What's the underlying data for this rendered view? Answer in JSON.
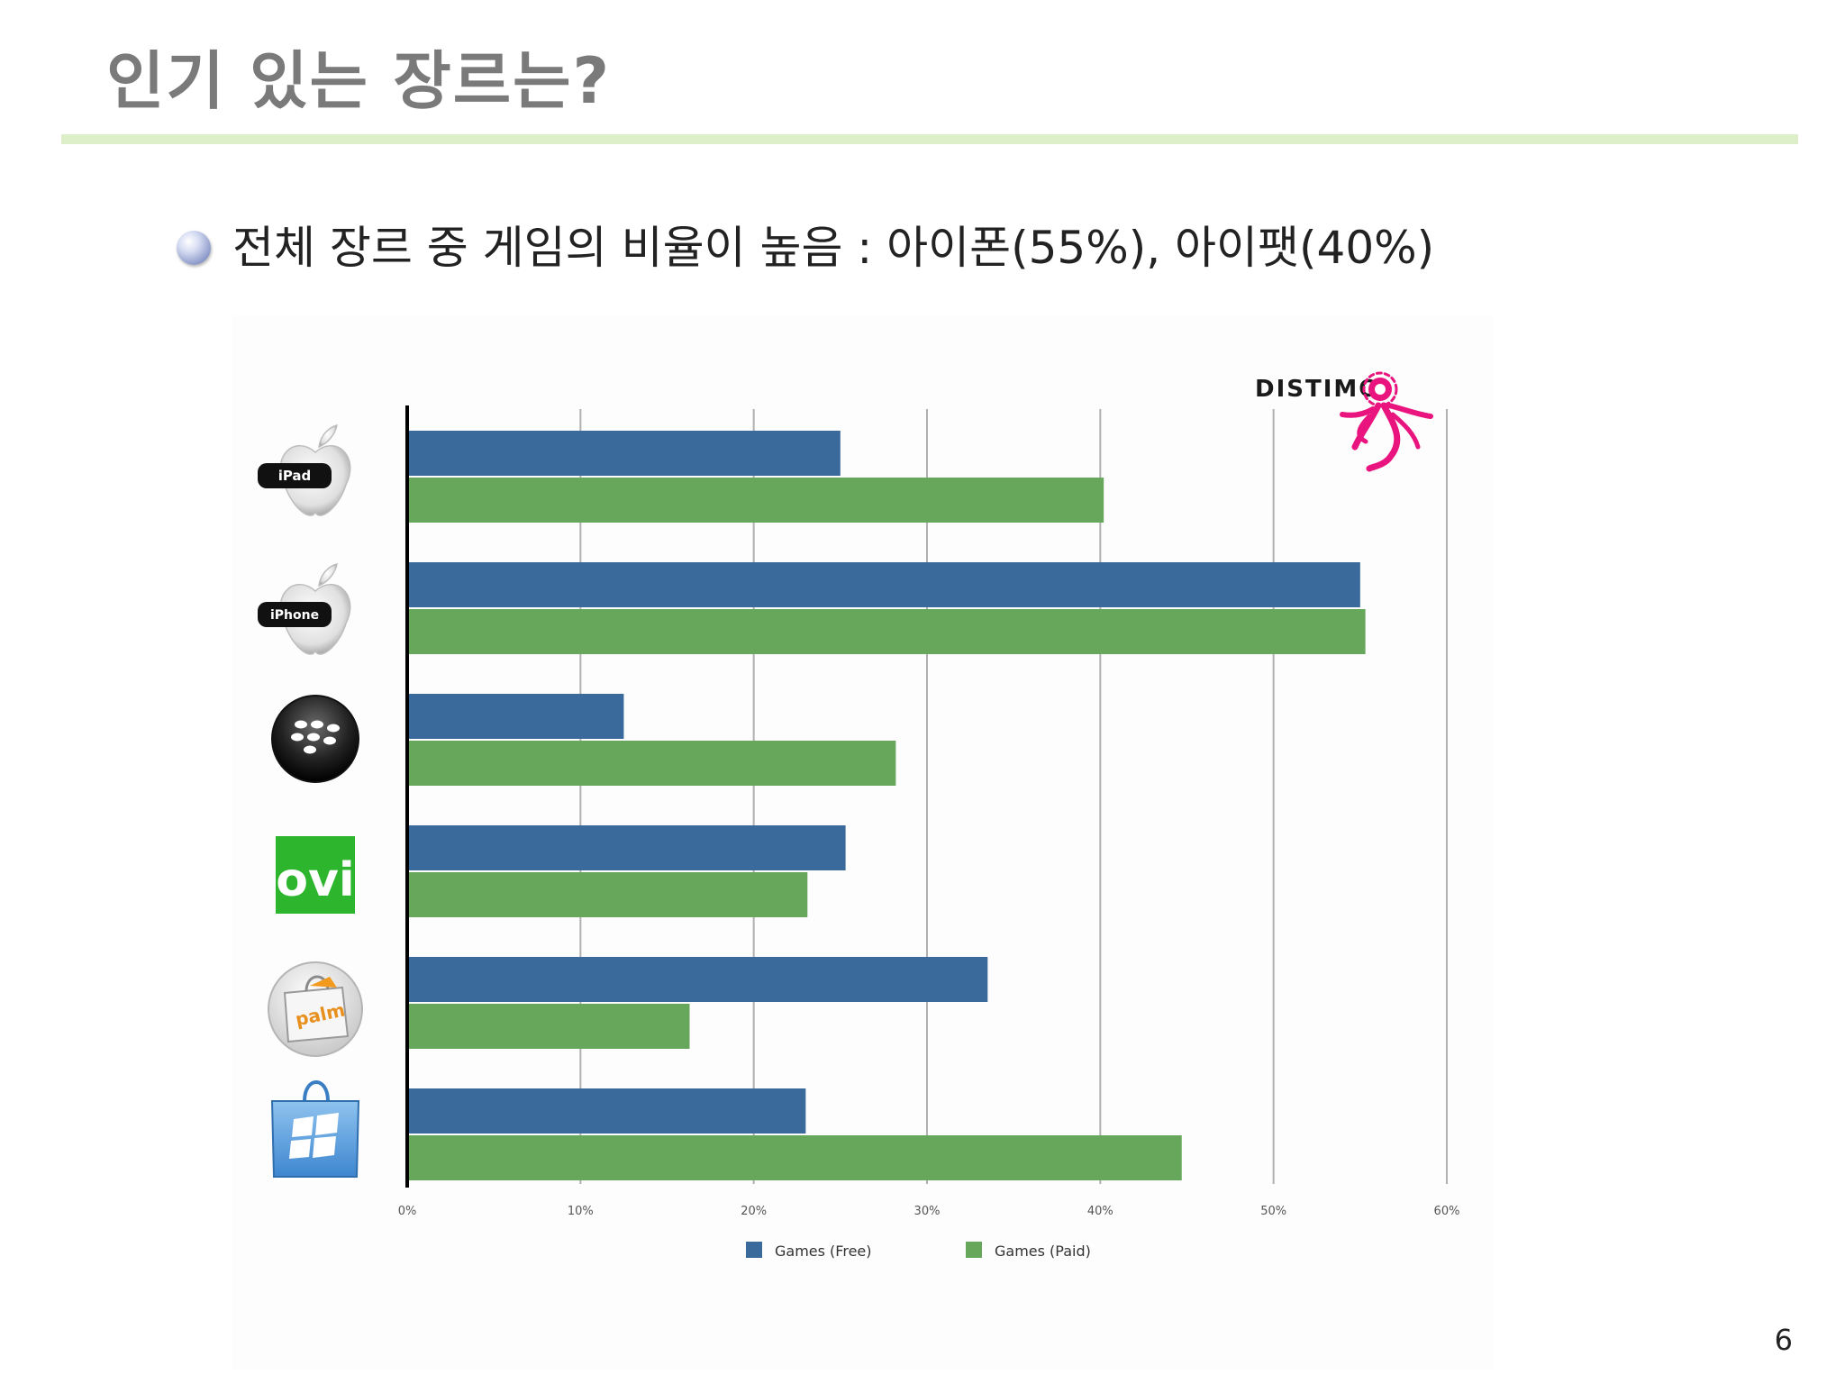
{
  "slide": {
    "title": "인기 있는 장르는?",
    "bullet": "전체 장르 중 게임의 비율이 높음 : 아이폰(55%), 아이팻(40%)",
    "page_number": "6"
  },
  "logos": {
    "distimo": "DISTIMO",
    "ipad_badge": "iPad",
    "iphone_badge": "iPhone",
    "ovi": "ovi",
    "palm": "palm"
  },
  "chart_data": {
    "type": "bar",
    "orientation": "horizontal",
    "categories": [
      "iPad",
      "iPhone",
      "BlackBerry",
      "Ovi",
      "Palm",
      "Windows Marketplace"
    ],
    "series": [
      {
        "name": "Games (Free)",
        "color": "#3a6a9c",
        "values": [
          25,
          55,
          12.5,
          25.3,
          33.5,
          23
        ]
      },
      {
        "name": "Games (Paid)",
        "color": "#67a75c",
        "values": [
          40.2,
          55.3,
          28.2,
          23.1,
          16.3,
          44.7
        ]
      }
    ],
    "x_ticks": [
      "0%",
      "10%",
      "20%",
      "30%",
      "40%",
      "50%",
      "60%"
    ],
    "xlim": [
      0,
      60
    ],
    "grid": true,
    "legend": "bottom"
  }
}
